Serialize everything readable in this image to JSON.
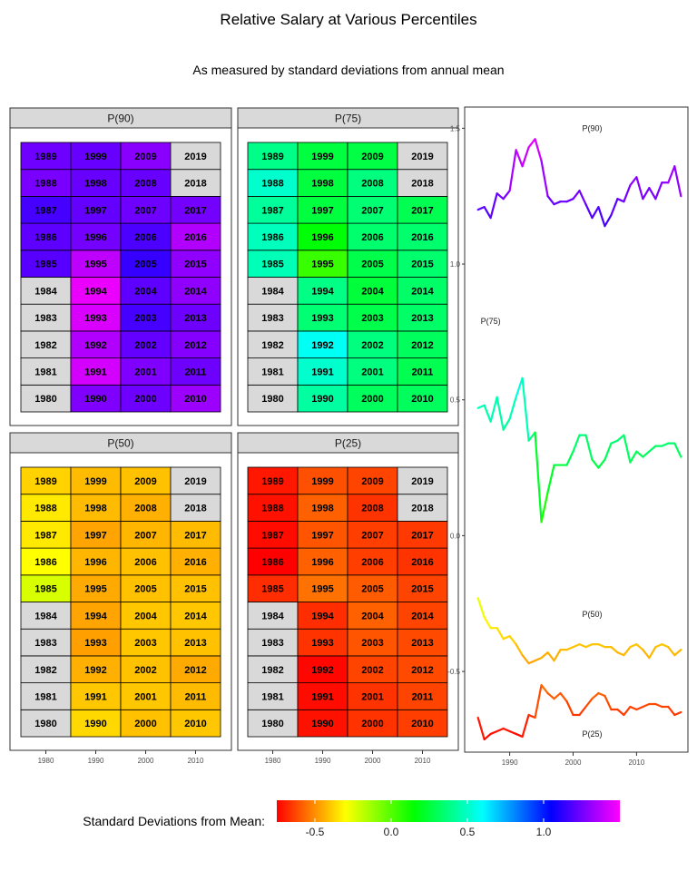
{
  "title": "Relative Salary at Various Percentiles",
  "subtitle": "As measured by standard deviations from annual mean",
  "legend": {
    "title": "Standard Deviations from Mean:",
    "ticks": [
      "-0.5",
      "0.0",
      "0.5",
      "1.0"
    ],
    "tick_values": [
      -0.5,
      0.0,
      0.5,
      1.0
    ],
    "range": [
      -0.75,
      1.5
    ]
  },
  "chart_data": [
    {
      "type": "heatmap",
      "title": "P(90)",
      "x_ticks": [
        "1980",
        "1990",
        "2000",
        "2010"
      ],
      "decades": [
        1980,
        1990,
        2000,
        2010
      ],
      "years": [
        1980,
        1981,
        1982,
        1983,
        1984,
        1985,
        1986,
        1987,
        1988,
        1989,
        1990,
        1991,
        1992,
        1993,
        1994,
        1995,
        1996,
        1997,
        1998,
        1999,
        2000,
        2001,
        2002,
        2003,
        2004,
        2005,
        2006,
        2007,
        2008,
        2009,
        2010,
        2011,
        2012,
        2013,
        2014,
        2015,
        2016,
        2017,
        2018,
        2019
      ],
      "values": [
        null,
        null,
        null,
        null,
        null,
        1.2,
        1.21,
        1.17,
        1.26,
        1.24,
        1.27,
        1.42,
        1.36,
        1.43,
        1.46,
        1.38,
        1.25,
        1.22,
        1.23,
        1.23,
        1.24,
        1.27,
        1.22,
        1.17,
        1.21,
        1.14,
        1.18,
        1.24,
        1.23,
        1.29,
        1.32,
        1.24,
        1.28,
        1.24,
        1.3,
        1.3,
        1.36,
        1.25,
        null,
        null
      ]
    },
    {
      "type": "heatmap",
      "title": "P(75)",
      "x_ticks": [
        "1980",
        "1990",
        "2000",
        "2010"
      ],
      "decades": [
        1980,
        1990,
        2000,
        2010
      ],
      "years": [
        1980,
        1981,
        1982,
        1983,
        1984,
        1985,
        1986,
        1987,
        1988,
        1989,
        1990,
        1991,
        1992,
        1993,
        1994,
        1995,
        1996,
        1997,
        1998,
        1999,
        2000,
        2001,
        2002,
        2003,
        2004,
        2005,
        2006,
        2007,
        2008,
        2009,
        2010,
        2011,
        2012,
        2013,
        2014,
        2015,
        2016,
        2017,
        2018,
        2019
      ],
      "values": [
        null,
        null,
        null,
        null,
        null,
        0.47,
        0.48,
        0.42,
        0.51,
        0.39,
        0.43,
        0.51,
        0.58,
        0.35,
        0.38,
        0.05,
        0.16,
        0.26,
        0.26,
        0.26,
        0.31,
        0.37,
        0.37,
        0.28,
        0.25,
        0.28,
        0.34,
        0.35,
        0.37,
        0.27,
        0.31,
        0.29,
        0.31,
        0.33,
        0.33,
        0.34,
        0.34,
        0.29,
        null,
        null
      ]
    },
    {
      "type": "heatmap",
      "title": "P(50)",
      "x_ticks": [
        "1980",
        "1990",
        "2000",
        "2010"
      ],
      "decades": [
        1980,
        1990,
        2000,
        2010
      ],
      "years": [
        1980,
        1981,
        1982,
        1983,
        1984,
        1985,
        1986,
        1987,
        1988,
        1989,
        1990,
        1991,
        1992,
        1993,
        1994,
        1995,
        1996,
        1997,
        1998,
        1999,
        2000,
        2001,
        2002,
        2003,
        2004,
        2005,
        2006,
        2007,
        2008,
        2009,
        2010,
        2011,
        2012,
        2013,
        2014,
        2015,
        2016,
        2017,
        2018,
        2019
      ],
      "values": [
        null,
        null,
        null,
        null,
        null,
        -0.23,
        -0.3,
        -0.34,
        -0.34,
        -0.38,
        -0.37,
        -0.4,
        -0.44,
        -0.47,
        -0.46,
        -0.45,
        -0.43,
        -0.46,
        -0.42,
        -0.42,
        -0.41,
        -0.4,
        -0.41,
        -0.4,
        -0.4,
        -0.41,
        -0.41,
        -0.43,
        -0.44,
        -0.41,
        -0.4,
        -0.42,
        -0.45,
        -0.41,
        -0.4,
        -0.41,
        -0.44,
        -0.42,
        null,
        null
      ]
    },
    {
      "type": "heatmap",
      "title": "P(25)",
      "x_ticks": [
        "1980",
        "1990",
        "2000",
        "2010"
      ],
      "decades": [
        1980,
        1990,
        2000,
        2010
      ],
      "years": [
        1980,
        1981,
        1982,
        1983,
        1984,
        1985,
        1986,
        1987,
        1988,
        1989,
        1990,
        1991,
        1992,
        1993,
        1994,
        1995,
        1996,
        1997,
        1998,
        1999,
        2000,
        2001,
        2002,
        2003,
        2004,
        2005,
        2006,
        2007,
        2008,
        2009,
        2010,
        2011,
        2012,
        2013,
        2014,
        2015,
        2016,
        2017,
        2018,
        2019
      ],
      "values": [
        null,
        null,
        null,
        null,
        null,
        -0.67,
        -0.75,
        -0.73,
        -0.72,
        -0.71,
        -0.72,
        -0.73,
        -0.74,
        -0.66,
        -0.67,
        -0.55,
        -0.58,
        -0.6,
        -0.58,
        -0.61,
        -0.66,
        -0.66,
        -0.63,
        -0.6,
        -0.58,
        -0.59,
        -0.64,
        -0.64,
        -0.66,
        -0.63,
        -0.64,
        -0.63,
        -0.62,
        -0.62,
        -0.63,
        -0.63,
        -0.66,
        -0.65,
        null,
        null
      ]
    },
    {
      "type": "line",
      "xlim": [
        1985,
        2016
      ],
      "ylim": [
        -0.75,
        1.55
      ],
      "x_ticks": [
        "1990",
        "2000",
        "2010"
      ],
      "x_tick_values": [
        1990,
        2000,
        2010
      ],
      "y_ticks": [
        "1.5",
        "1.0",
        "0.5",
        "0.0",
        "-0.5"
      ],
      "y_tick_values": [
        1.5,
        1.0,
        0.5,
        0.0,
        -0.5
      ],
      "labels": [
        {
          "text": "P(90)",
          "x": 2003,
          "y": 1.5
        },
        {
          "text": "P(75)",
          "x": 1987,
          "y": 0.79
        },
        {
          "text": "P(50)",
          "x": 2003,
          "y": -0.29
        },
        {
          "text": "P(25)",
          "x": 2003,
          "y": -0.73
        }
      ],
      "x": [
        1985,
        1986,
        1987,
        1988,
        1989,
        1990,
        1991,
        1992,
        1993,
        1994,
        1995,
        1996,
        1997,
        1998,
        1999,
        2000,
        2001,
        2002,
        2003,
        2004,
        2005,
        2006,
        2007,
        2008,
        2009,
        2010,
        2011,
        2012,
        2013,
        2014,
        2015,
        2016,
        2017
      ],
      "series": [
        {
          "name": "P(90)",
          "values": [
            1.2,
            1.21,
            1.17,
            1.26,
            1.24,
            1.27,
            1.42,
            1.36,
            1.43,
            1.46,
            1.38,
            1.25,
            1.22,
            1.23,
            1.23,
            1.24,
            1.27,
            1.22,
            1.17,
            1.21,
            1.14,
            1.18,
            1.24,
            1.23,
            1.29,
            1.32,
            1.24,
            1.28,
            1.24,
            1.3,
            1.3,
            1.36,
            1.25
          ]
        },
        {
          "name": "P(75)",
          "values": [
            0.47,
            0.48,
            0.42,
            0.51,
            0.39,
            0.43,
            0.51,
            0.58,
            0.35,
            0.38,
            0.05,
            0.16,
            0.26,
            0.26,
            0.26,
            0.31,
            0.37,
            0.37,
            0.28,
            0.25,
            0.28,
            0.34,
            0.35,
            0.37,
            0.27,
            0.31,
            0.29,
            0.31,
            0.33,
            0.33,
            0.34,
            0.34,
            0.29
          ]
        },
        {
          "name": "P(50)",
          "values": [
            -0.23,
            -0.3,
            -0.34,
            -0.34,
            -0.38,
            -0.37,
            -0.4,
            -0.44,
            -0.47,
            -0.46,
            -0.45,
            -0.43,
            -0.46,
            -0.42,
            -0.42,
            -0.41,
            -0.4,
            -0.41,
            -0.4,
            -0.4,
            -0.41,
            -0.41,
            -0.43,
            -0.44,
            -0.41,
            -0.4,
            -0.42,
            -0.45,
            -0.41,
            -0.4,
            -0.41,
            -0.44,
            -0.42
          ]
        },
        {
          "name": "P(25)",
          "values": [
            -0.67,
            -0.75,
            -0.73,
            -0.72,
            -0.71,
            -0.72,
            -0.73,
            -0.74,
            -0.66,
            -0.67,
            -0.55,
            -0.58,
            -0.6,
            -0.58,
            -0.61,
            -0.66,
            -0.66,
            -0.63,
            -0.6,
            -0.58,
            -0.59,
            -0.64,
            -0.64,
            -0.66,
            -0.63,
            -0.64,
            -0.63,
            -0.62,
            -0.62,
            -0.63,
            -0.63,
            -0.66,
            -0.65
          ]
        }
      ]
    }
  ]
}
